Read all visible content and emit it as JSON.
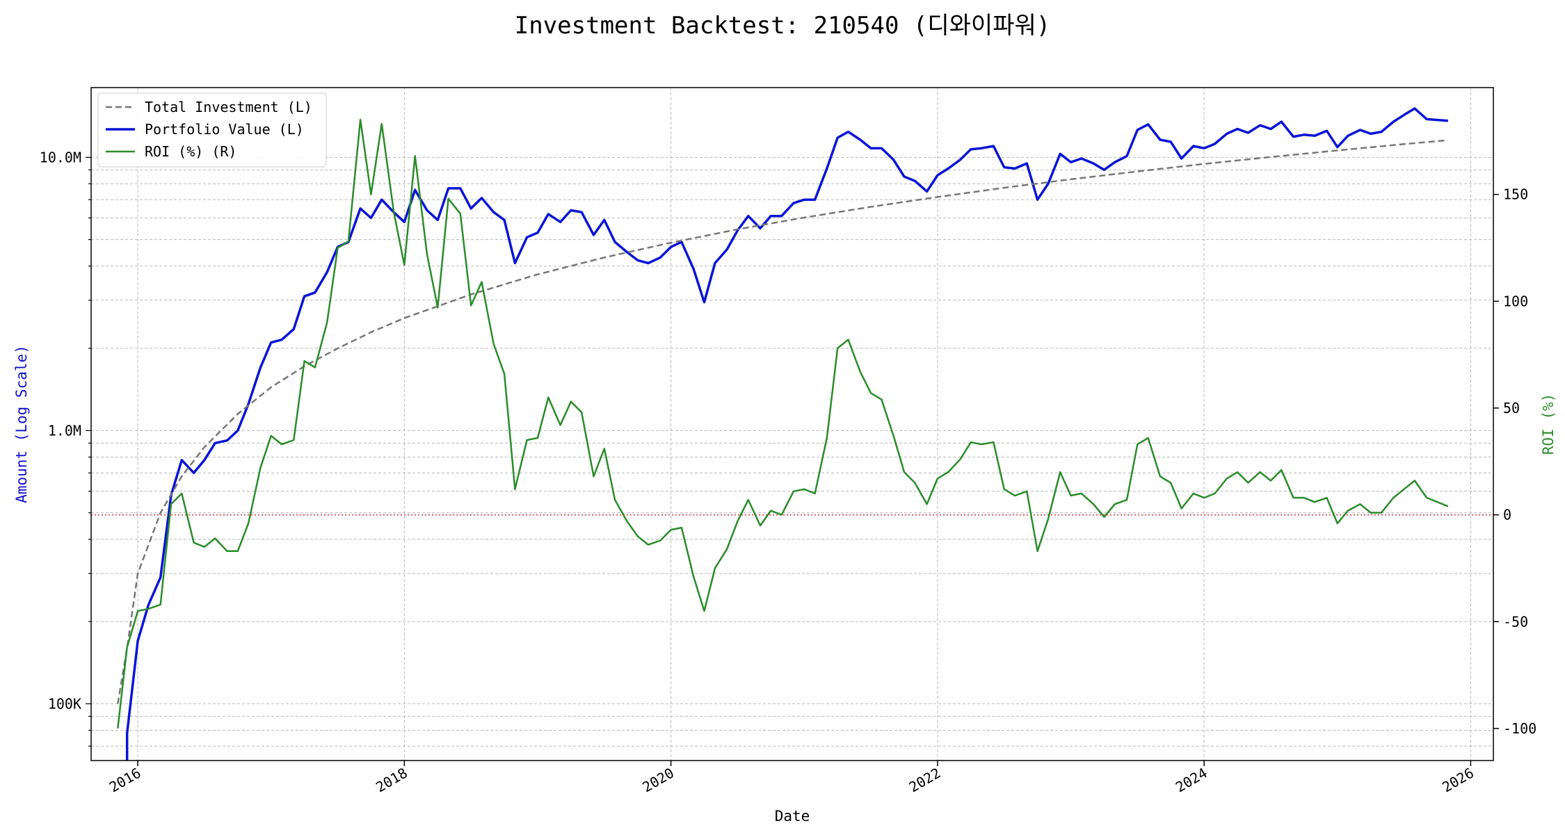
{
  "chart_data": {
    "type": "line",
    "title": "Investment Backtest: 210540 (디와이파워)",
    "xlabel": "Date",
    "ylabel_left": "Amount (Log Scale)",
    "ylabel_right": "ROI (%)",
    "xlim": [
      2015.65,
      2026.17
    ],
    "ylim_left": [
      62000,
      18000000
    ],
    "ylim_right": [
      -115,
      200
    ],
    "left_scale": "log",
    "grid": true,
    "legend_position": "upper-left",
    "x_ticks": [
      2016,
      2018,
      2020,
      2022,
      2024,
      2026
    ],
    "left_ticks": [
      {
        "value": 100000,
        "label": "100K"
      },
      {
        "value": 1000000,
        "label": "1.0M"
      },
      {
        "value": 10000000,
        "label": "10.0M"
      }
    ],
    "right_ticks": [
      -100,
      -50,
      0,
      50,
      100,
      150
    ],
    "reference_line": {
      "axis": "right",
      "value": 0,
      "color": "#e03030"
    },
    "series": [
      {
        "name": "Total Investment (L)",
        "axis": "left",
        "color": "#777777",
        "dashed": true,
        "x": [
          2015.85,
          2015.92,
          2016.0,
          2016.17,
          2016.33,
          2016.5,
          2016.75,
          2017.0,
          2017.25,
          2017.5,
          2017.75,
          2018.0,
          2018.5,
          2019.0,
          2019.5,
          2020.0,
          2020.5,
          2021.0,
          2021.5,
          2022.0,
          2022.5,
          2023.0,
          2023.5,
          2024.0,
          2024.5,
          2025.0,
          2025.5,
          2025.83
        ],
        "values": [
          100000,
          160000,
          300000,
          500000,
          680000,
          870000,
          1150000,
          1440000,
          1720000,
          2000000,
          2290000,
          2580000,
          3150000,
          3730000,
          4300000,
          4870000,
          5450000,
          6020000,
          6590000,
          7160000,
          7740000,
          8310000,
          8880000,
          9460000,
          10030000,
          10600000,
          11180000,
          11560000
        ]
      },
      {
        "name": "Portfolio Value (L)",
        "axis": "left",
        "color": "#0a14d6",
        "dashed": false,
        "x": [
          2015.92,
          2015.92,
          2016.0,
          2016.08,
          2016.17,
          2016.25,
          2016.33,
          2016.42,
          2016.5,
          2016.58,
          2016.67,
          2016.75,
          2016.83,
          2016.92,
          2017.0,
          2017.08,
          2017.17,
          2017.25,
          2017.33,
          2017.42,
          2017.5,
          2017.58,
          2017.67,
          2017.75,
          2017.83,
          2017.92,
          2018.0,
          2018.08,
          2018.17,
          2018.25,
          2018.33,
          2018.42,
          2018.5,
          2018.58,
          2018.67,
          2018.75,
          2018.83,
          2018.92,
          2019.0,
          2019.08,
          2019.17,
          2019.25,
          2019.33,
          2019.42,
          2019.5,
          2019.58,
          2019.67,
          2019.75,
          2019.83,
          2019.92,
          2020.0,
          2020.08,
          2020.17,
          2020.25,
          2020.33,
          2020.42,
          2020.5,
          2020.58,
          2020.67,
          2020.75,
          2020.83,
          2020.92,
          2021.0,
          2021.08,
          2021.17,
          2021.25,
          2021.33,
          2021.42,
          2021.5,
          2021.58,
          2021.67,
          2021.75,
          2021.83,
          2021.92,
          2022.0,
          2022.08,
          2022.17,
          2022.25,
          2022.33,
          2022.42,
          2022.5,
          2022.58,
          2022.67,
          2022.75,
          2022.83,
          2022.92,
          2023.0,
          2023.08,
          2023.17,
          2023.25,
          2023.33,
          2023.42,
          2023.5,
          2023.58,
          2023.67,
          2023.75,
          2023.83,
          2023.92,
          2024.0,
          2024.08,
          2024.17,
          2024.25,
          2024.33,
          2024.42,
          2024.5,
          2024.58,
          2024.67,
          2024.75,
          2024.83,
          2024.92,
          2025.0,
          2025.08,
          2025.17,
          2025.25,
          2025.33,
          2025.42,
          2025.5,
          2025.58,
          2025.67,
          2025.83
        ],
        "values": [
          55000,
          78000,
          170000,
          230000,
          290000,
          580000,
          780000,
          700000,
          780000,
          900000,
          920000,
          1000000,
          1250000,
          1700000,
          2100000,
          2150000,
          2350000,
          3100000,
          3200000,
          3800000,
          4700000,
          4900000,
          6500000,
          6000000,
          7000000,
          6300000,
          5800000,
          7600000,
          6400000,
          5900000,
          7700000,
          7700000,
          6500000,
          7100000,
          6300000,
          5900000,
          4100000,
          5100000,
          5300000,
          6200000,
          5800000,
          6400000,
          6300000,
          5200000,
          5900000,
          4900000,
          4500000,
          4200000,
          4100000,
          4300000,
          4700000,
          4900000,
          3900000,
          2950000,
          4100000,
          4600000,
          5400000,
          6100000,
          5500000,
          6100000,
          6100000,
          6800000,
          7000000,
          7000000,
          9100000,
          11800000,
          12400000,
          11600000,
          10800000,
          10800000,
          9800000,
          8500000,
          8200000,
          7500000,
          8600000,
          9100000,
          9800000,
          10700000,
          10800000,
          11000000,
          9200000,
          9100000,
          9500000,
          7000000,
          8000000,
          10300000,
          9600000,
          9900000,
          9500000,
          9000000,
          9600000,
          10100000,
          12600000,
          13200000,
          11600000,
          11400000,
          9900000,
          11000000,
          10800000,
          11200000,
          12200000,
          12700000,
          12300000,
          13100000,
          12700000,
          13500000,
          11900000,
          12100000,
          12000000,
          12500000,
          10900000,
          12000000,
          12600000,
          12200000,
          12400000,
          13500000,
          14300000,
          15100000,
          13800000,
          13600000
        ]
      },
      {
        "name": "ROI (%) (R)",
        "axis": "right",
        "color": "#2a8c2a",
        "dashed": false,
        "x": [
          2015.85,
          2015.92,
          2016.0,
          2016.08,
          2016.17,
          2016.25,
          2016.33,
          2016.42,
          2016.5,
          2016.58,
          2016.67,
          2016.75,
          2016.83,
          2016.92,
          2017.0,
          2017.08,
          2017.17,
          2017.25,
          2017.33,
          2017.42,
          2017.5,
          2017.58,
          2017.67,
          2017.75,
          2017.83,
          2017.92,
          2018.0,
          2018.08,
          2018.17,
          2018.25,
          2018.33,
          2018.42,
          2018.5,
          2018.58,
          2018.67,
          2018.75,
          2018.83,
          2018.92,
          2019.0,
          2019.08,
          2019.17,
          2019.25,
          2019.33,
          2019.42,
          2019.5,
          2019.58,
          2019.67,
          2019.75,
          2019.83,
          2019.92,
          2020.0,
          2020.08,
          2020.17,
          2020.25,
          2020.33,
          2020.42,
          2020.5,
          2020.58,
          2020.67,
          2020.75,
          2020.83,
          2020.92,
          2021.0,
          2021.08,
          2021.17,
          2021.25,
          2021.33,
          2021.42,
          2021.5,
          2021.58,
          2021.67,
          2021.75,
          2021.83,
          2021.92,
          2022.0,
          2022.08,
          2022.17,
          2022.25,
          2022.33,
          2022.42,
          2022.5,
          2022.58,
          2022.67,
          2022.75,
          2022.83,
          2022.92,
          2023.0,
          2023.08,
          2023.17,
          2023.25,
          2023.33,
          2023.42,
          2023.5,
          2023.58,
          2023.67,
          2023.75,
          2023.83,
          2023.92,
          2024.0,
          2024.08,
          2024.17,
          2024.25,
          2024.33,
          2024.42,
          2024.5,
          2024.58,
          2024.67,
          2024.75,
          2024.83,
          2024.92,
          2025.0,
          2025.08,
          2025.17,
          2025.25,
          2025.33,
          2025.42,
          2025.5,
          2025.58,
          2025.67,
          2025.83
        ],
        "values": [
          -100,
          -62,
          -45,
          -44,
          -42,
          5,
          10,
          -13,
          -15,
          -11,
          -17,
          -17,
          -4,
          22,
          37,
          33,
          35,
          72,
          69,
          90,
          125,
          128,
          185,
          150,
          183,
          142,
          117,
          168,
          122,
          97,
          148,
          141,
          98,
          109,
          80,
          66,
          12,
          35,
          36,
          55,
          42,
          53,
          48,
          18,
          31,
          7,
          -3,
          -10,
          -14,
          -12,
          -7,
          -6,
          -29,
          -45,
          -25,
          -16,
          -3,
          7,
          -5,
          2,
          0,
          11,
          12,
          10,
          36,
          78,
          82,
          67,
          57,
          54,
          37,
          20,
          15,
          5,
          17,
          20,
          26,
          34,
          33,
          34,
          12,
          9,
          11,
          -17,
          -2,
          20,
          9,
          10,
          5,
          -1,
          5,
          7,
          33,
          36,
          18,
          15,
          3,
          10,
          8,
          10,
          17,
          20,
          15,
          20,
          16,
          21,
          8,
          8,
          6,
          8,
          -4,
          2,
          5,
          1,
          1,
          8,
          12,
          16,
          8,
          4
        ]
      }
    ]
  }
}
